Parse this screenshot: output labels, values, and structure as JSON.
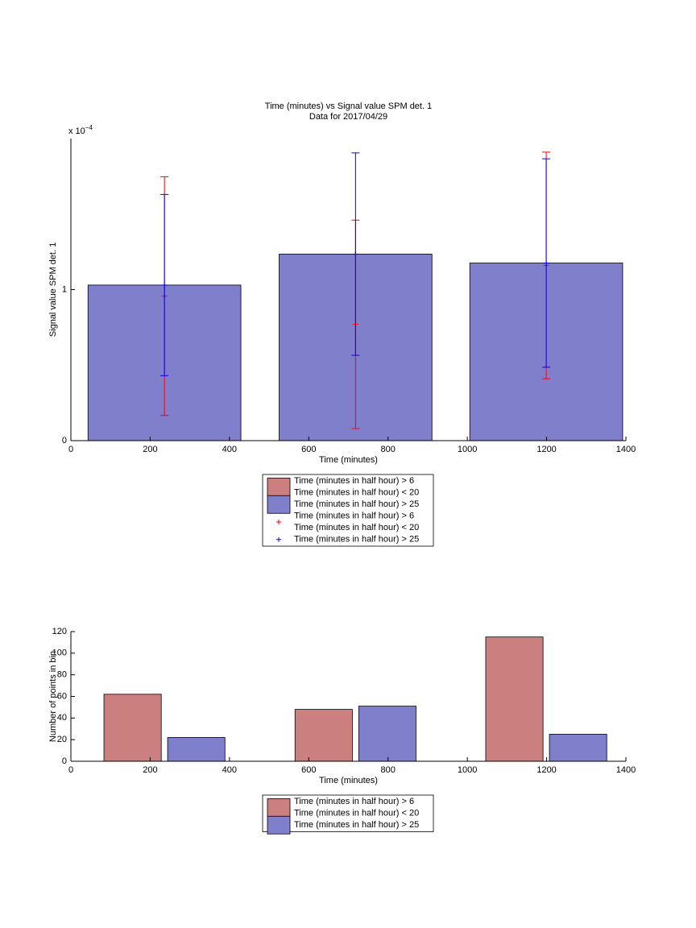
{
  "chart_data": [
    {
      "type": "bar",
      "title": "Time (minutes) vs Signal value SPM det. 1",
      "subtitle": "Data for 2017/04/29",
      "x_label": "Time (minutes)",
      "y_label": "Signal value SPM det. 1",
      "y_multiplier": {
        "base": "x 10",
        "exponent": "−4"
      },
      "x": [
        236,
        718,
        1199
      ],
      "xlim": [
        0,
        1400
      ],
      "xticks": [
        0,
        200,
        400,
        600,
        800,
        1000,
        1200,
        1400
      ],
      "ylim": [
        0,
        2
      ],
      "yticks": [
        0,
        1
      ],
      "grouped": false,
      "series": [
        {
          "name": [
            "Time (minutes in half hour) > 6",
            "Time (minutes in half hour) < 20"
          ],
          "color": "#cc7f7f",
          "values": [
            null,
            null,
            null
          ]
        },
        {
          "name": [
            "Time (minutes in half hour) > 25"
          ],
          "color": "#7f7fcc",
          "values": [
            1.03,
            1.235,
            1.176
          ]
        }
      ],
      "errorbars": [
        {
          "name": [
            "Time (minutes in half hour) > 6",
            "Time (minutes in half hour) < 20"
          ],
          "color": "#ff0000",
          "values": [
            0.957,
            0.77,
            1.16
          ],
          "errors": [
            0.79,
            0.69,
            0.75
          ]
        },
        {
          "name": [
            "Time (minutes in half hour) > 25"
          ],
          "color": "#0000ff",
          "values": [
            1.03,
            1.235,
            1.176
          ],
          "errors": [
            0.6,
            0.67,
            0.69
          ]
        }
      ]
    },
    {
      "type": "bar",
      "x_label": "Time (minutes)",
      "y_label": "Number of points in bin",
      "x": [
        236,
        718,
        1199
      ],
      "xlim": [
        0,
        1400
      ],
      "xticks": [
        0,
        200,
        400,
        600,
        800,
        1000,
        1200,
        1400
      ],
      "ylim": [
        0,
        120
      ],
      "yticks": [
        0,
        20,
        40,
        60,
        80,
        100,
        120
      ],
      "grouped": true,
      "series": [
        {
          "name": [
            "Time (minutes in half hour) > 6",
            "Time (minutes in half hour) < 20"
          ],
          "color": "#cc7f7f",
          "values": [
            62,
            48,
            115
          ]
        },
        {
          "name": [
            "Time (minutes in half hour) > 25"
          ],
          "color": "#7f7fcc",
          "values": [
            22,
            51,
            25
          ]
        }
      ]
    }
  ]
}
